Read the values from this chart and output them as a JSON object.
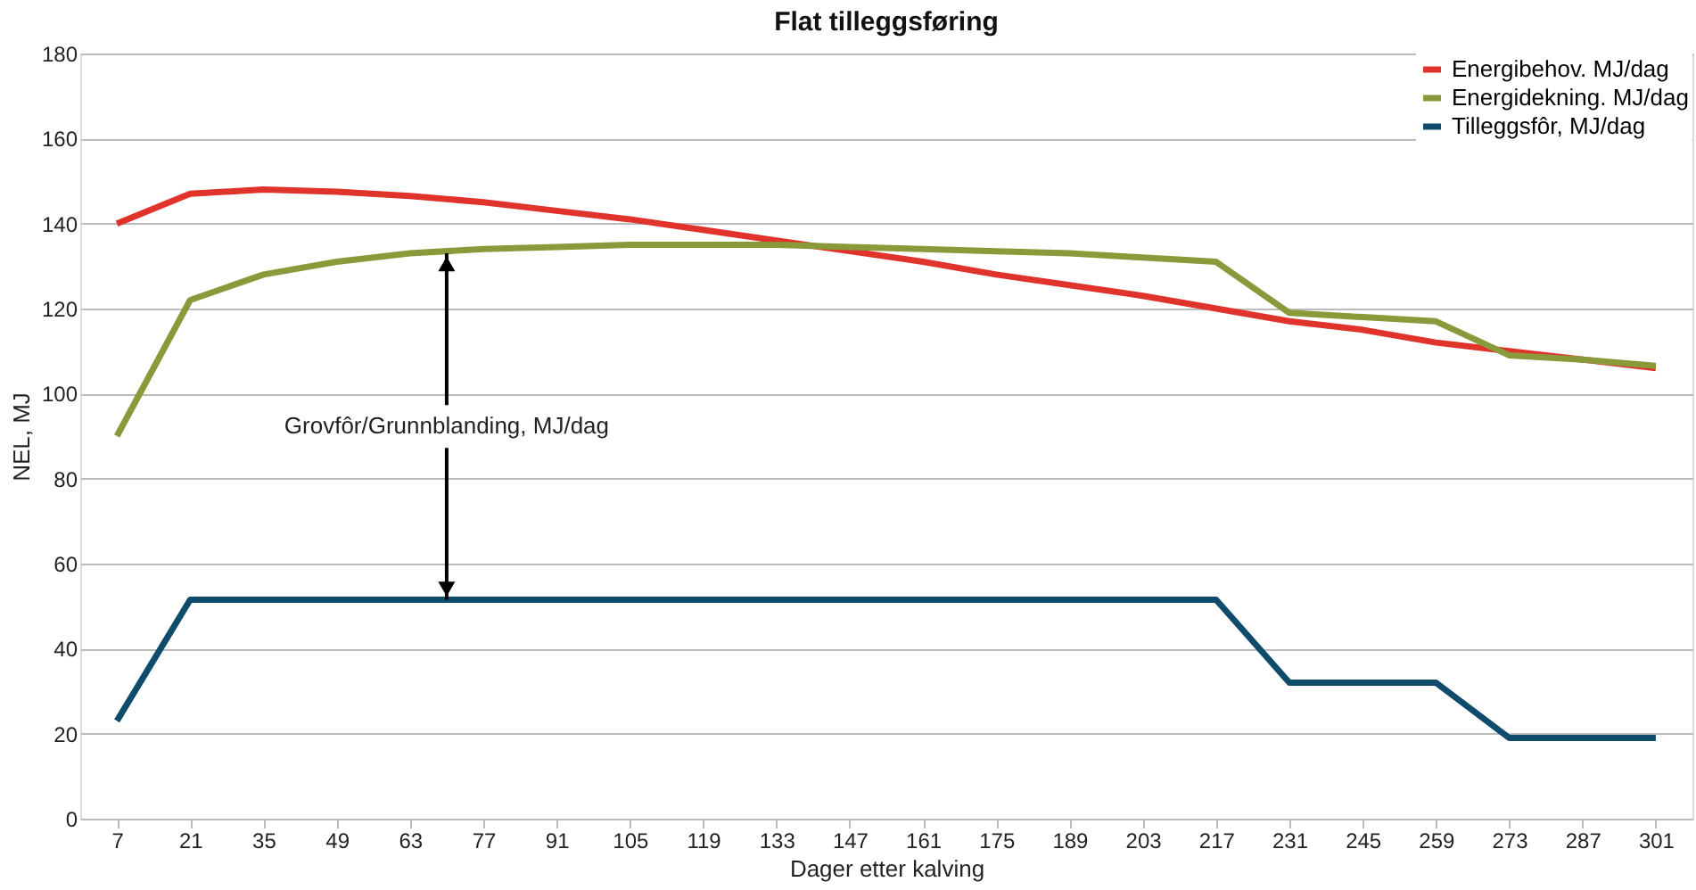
{
  "chart_data": {
    "type": "line",
    "title": "Flat tilleggsføring",
    "xlabel": "Dager etter kalving",
    "ylabel": "NEL, MJ",
    "categories": [
      "7",
      "21",
      "35",
      "49",
      "63",
      "77",
      "91",
      "105",
      "119",
      "133",
      "147",
      "161",
      "175",
      "189",
      "203",
      "217",
      "231",
      "245",
      "259",
      "273",
      "287",
      "301"
    ],
    "series": [
      {
        "name": "Energibehov. MJ/dag",
        "color": "#e0332b",
        "values": [
          140,
          147,
          148,
          147.5,
          146.5,
          145,
          143,
          141,
          138.5,
          136,
          133.5,
          131,
          128,
          125.5,
          123,
          120,
          117,
          115,
          112,
          110,
          108,
          106
        ]
      },
      {
        "name": "Energidekning. MJ/dag",
        "color": "#8a9a3a",
        "values": [
          90,
          122,
          128,
          131,
          133,
          134,
          134.5,
          135,
          135,
          135,
          134.5,
          134,
          133.5,
          133,
          132,
          131,
          119,
          118,
          117,
          109,
          108,
          106.5
        ]
      },
      {
        "name": "Tilleggsfôr, MJ/dag",
        "color": "#0f4c6b",
        "values": [
          23,
          51.5,
          51.5,
          51.5,
          51.5,
          51.5,
          51.5,
          51.5,
          51.5,
          51.5,
          51.5,
          51.5,
          51.5,
          51.5,
          51.5,
          51.5,
          32,
          32,
          32,
          19,
          19,
          19
        ]
      }
    ],
    "ylim": [
      0,
      180
    ],
    "yticks": [
      0,
      20,
      40,
      60,
      80,
      100,
      120,
      140,
      160,
      180
    ],
    "grid": "y",
    "legend": "top right",
    "marker": "none",
    "line_style": "solid",
    "annotations": [
      {
        "text": "Grovfôr/Grunnblanding, MJ/dag",
        "y": 51.5
      }
    ]
  }
}
